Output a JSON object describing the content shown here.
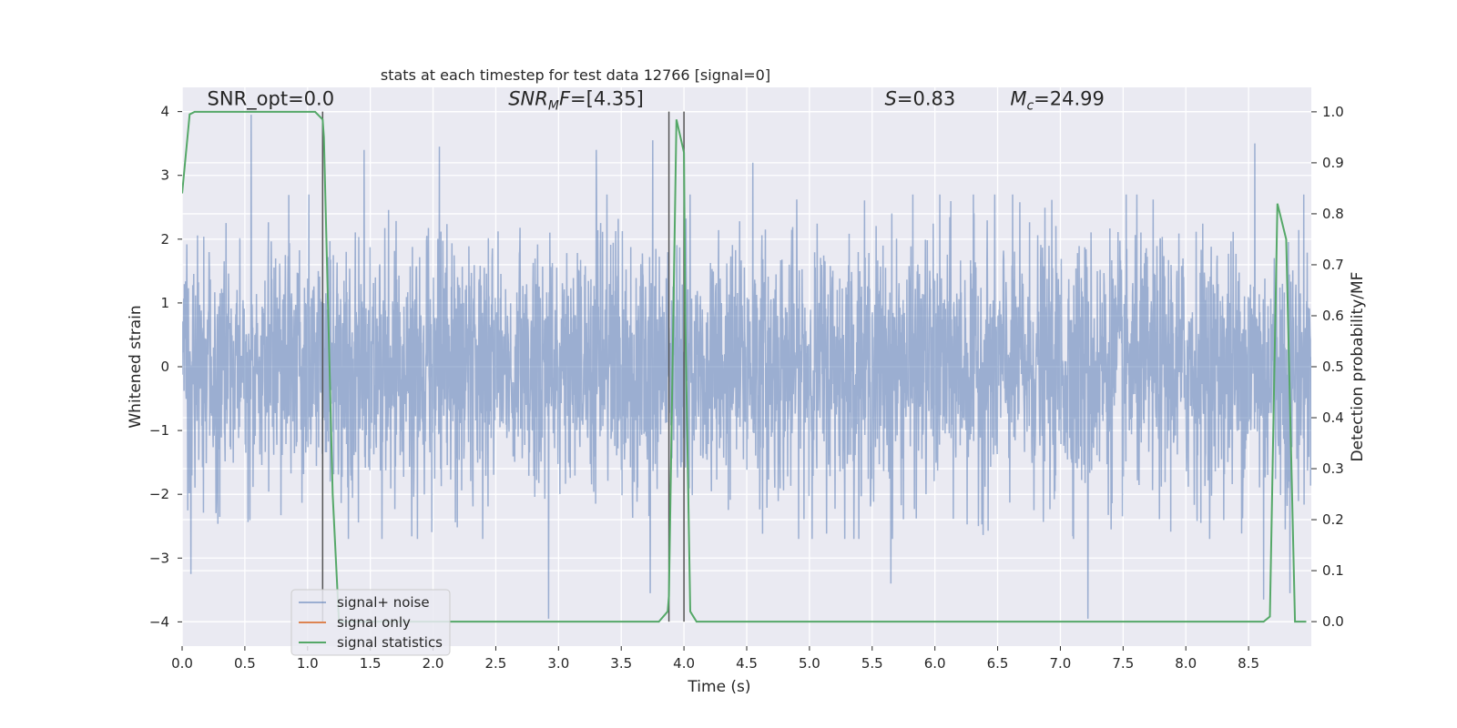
{
  "chart_data": {
    "type": "line",
    "title": "stats at each timestep for test data 12766 [signal=0]",
    "xlabel": "Time (s)",
    "ylabel": "Whitened strain",
    "y2label": "Detection probability/MF",
    "xlim": [
      0.0,
      9.0
    ],
    "ylim": [
      -4.38,
      4.38
    ],
    "y2lim": [
      -0.048,
      1.048
    ],
    "xticks": [
      "0.0",
      "0.5",
      "1.0",
      "1.5",
      "2.0",
      "2.5",
      "3.0",
      "3.5",
      "4.0",
      "4.5",
      "5.0",
      "5.5",
      "6.0",
      "6.5",
      "7.0",
      "7.5",
      "8.0",
      "8.5"
    ],
    "xtick_values": [
      0,
      0.5,
      1,
      1.5,
      2,
      2.5,
      3,
      3.5,
      4,
      4.5,
      5,
      5.5,
      6,
      6.5,
      7,
      7.5,
      8,
      8.5
    ],
    "yticks": [
      "4",
      "3",
      "2",
      "1",
      "0",
      "−1",
      "−2",
      "−3",
      "−4"
    ],
    "ytick_values": [
      4,
      3,
      2,
      1,
      0,
      -1,
      -2,
      -3,
      -4
    ],
    "y2ticks": [
      "1.0",
      "0.9",
      "0.8",
      "0.7",
      "0.6",
      "0.5",
      "0.4",
      "0.3",
      "0.2",
      "0.1",
      "0.0"
    ],
    "y2tick_values": [
      1.0,
      0.9,
      0.8,
      0.7,
      0.6,
      0.5,
      0.4,
      0.3,
      0.2,
      0.1,
      0.0
    ],
    "grid": true,
    "legend_position": "lower-left",
    "annotations": [
      {
        "text": "SNR_opt=0.0",
        "x": 0.2,
        "y": 4.1,
        "style": "plain"
      },
      {
        "base": "SNR",
        "sub": "M",
        "tail": "F=[4.35]",
        "x": 2.6,
        "y": 4.1,
        "style": "math-sub"
      },
      {
        "base": "S",
        "sub": "",
        "tail": "=0.83",
        "x": 5.6,
        "y": 4.1,
        "style": "math-sub"
      },
      {
        "base": "M",
        "sub": "c",
        "tail": "=24.99",
        "x": 6.6,
        "y": 4.1,
        "style": "math-sub"
      }
    ],
    "vlines": [
      1.12,
      3.88,
      4.0
    ],
    "series": [
      {
        "name": "signal+ noise",
        "color": "#4c72b0",
        "alpha": 0.5,
        "axis": "left",
        "noise_sigma": 1.0,
        "spikes": [
          [
            0.55,
            3.95
          ],
          [
            1.45,
            3.4
          ],
          [
            2.05,
            3.45
          ],
          [
            3.3,
            3.4
          ],
          [
            3.75,
            3.55
          ],
          [
            4.55,
            3.2
          ],
          [
            8.55,
            3.5
          ],
          [
            0.07,
            -3.25
          ],
          [
            2.92,
            -3.95
          ],
          [
            3.73,
            -3.55
          ],
          [
            7.22,
            -3.95
          ],
          [
            8.62,
            -3.65
          ],
          [
            8.83,
            -3.55
          ],
          [
            5.65,
            -3.4
          ]
        ]
      },
      {
        "name": "signal only",
        "color": "#dd8452",
        "axis": "left",
        "x": [],
        "y": []
      },
      {
        "name": "signal statistics",
        "color": "#55a868",
        "axis": "right",
        "x": [
          0.0,
          0.06,
          0.1,
          0.2,
          0.5,
          1.0,
          1.06,
          1.12,
          1.13,
          1.2,
          1.25,
          1.3,
          1.5,
          2.0,
          2.5,
          3.0,
          3.5,
          3.8,
          3.87,
          3.88,
          3.94,
          4.0,
          4.01,
          4.05,
          4.1,
          4.5,
          5.0,
          5.5,
          6.0,
          6.5,
          7.0,
          7.5,
          8.0,
          8.5,
          8.62,
          8.67,
          8.73,
          8.8,
          8.87,
          8.91,
          8.96
        ],
        "y": [
          0.84,
          0.995,
          1.0,
          1.0,
          1.0,
          1.0,
          1.0,
          0.985,
          0.95,
          0.25,
          0.0,
          0.0,
          0.0,
          0.0,
          0.0,
          0.0,
          0.0,
          0.0,
          0.02,
          0.05,
          0.985,
          0.92,
          0.6,
          0.02,
          0.0,
          0.0,
          0.0,
          0.0,
          0.0,
          0.0,
          0.0,
          0.0,
          0.0,
          0.0,
          0.0,
          0.01,
          0.82,
          0.75,
          0.0,
          0.0,
          0.0
        ]
      }
    ]
  }
}
